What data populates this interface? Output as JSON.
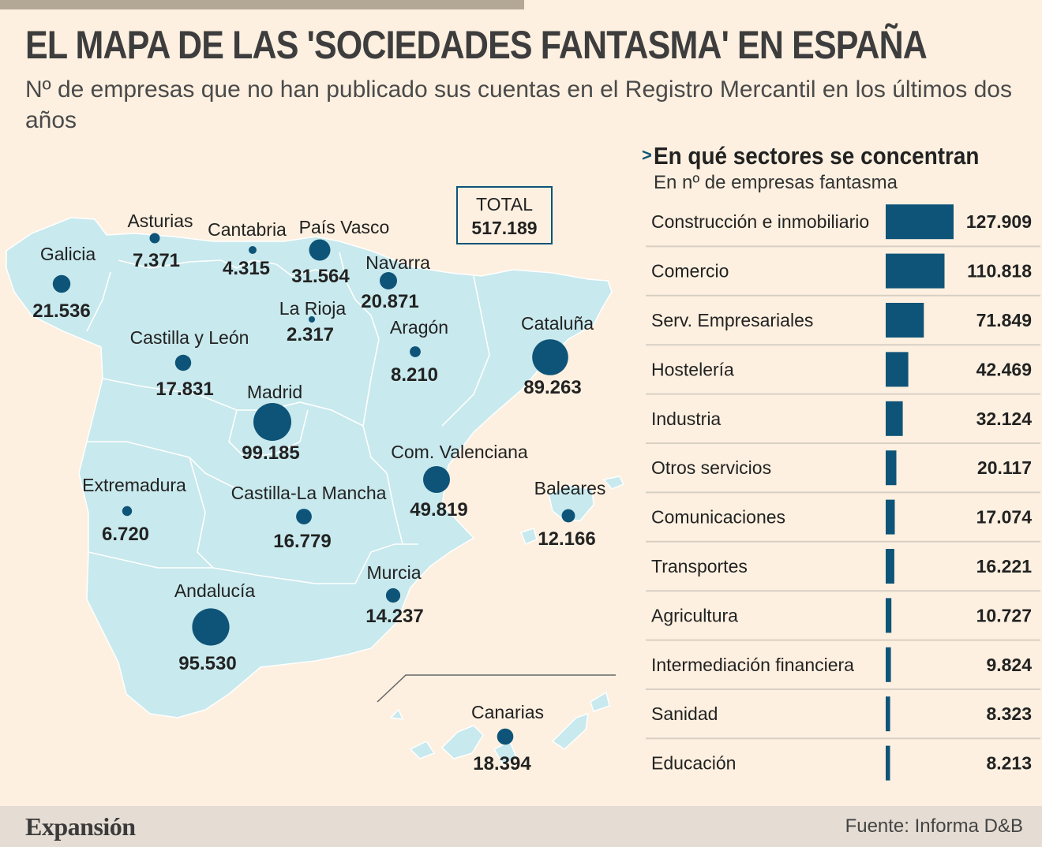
{
  "header": {
    "title": "EL MAPA DE LAS 'SOCIEDADES FANTASMA' EN ESPAÑA",
    "subtitle": "Nº de empresas que no han publicado sus cuentas en el Registro Mercantil en los últimos dos años"
  },
  "total": {
    "label": "TOTAL",
    "value": "517.189"
  },
  "colors": {
    "accent": "#0e5478",
    "map_fill": "#c8e9ed",
    "background": "#fdf0e0",
    "footer": "#e5ddd4"
  },
  "chart_data": [
    {
      "type": "bubble-map",
      "title": "EL MAPA DE LAS 'SOCIEDADES FANTASMA' EN ESPAÑA",
      "regions": [
        {
          "name": "Galicia",
          "value": 21536,
          "label": "21.536"
        },
        {
          "name": "Asturias",
          "value": 7371,
          "label": "7.371"
        },
        {
          "name": "Cantabria",
          "value": 4315,
          "label": "4.315"
        },
        {
          "name": "País Vasco",
          "value": 31564,
          "label": "31.564"
        },
        {
          "name": "Navarra",
          "value": 20871,
          "label": "20.871"
        },
        {
          "name": "La Rioja",
          "value": 2317,
          "label": "2.317"
        },
        {
          "name": "Aragón",
          "value": 8210,
          "label": "8.210"
        },
        {
          "name": "Cataluña",
          "value": 89263,
          "label": "89.263"
        },
        {
          "name": "Castilla y León",
          "value": 17831,
          "label": "17.831"
        },
        {
          "name": "Madrid",
          "value": 99185,
          "label": "99.185"
        },
        {
          "name": "Com. Valenciana",
          "value": 49819,
          "label": "49.819"
        },
        {
          "name": "Baleares",
          "value": 12166,
          "label": "12.166"
        },
        {
          "name": "Extremadura",
          "value": 6720,
          "label": "6.720"
        },
        {
          "name": "Castilla-La Mancha",
          "value": 16779,
          "label": "16.779"
        },
        {
          "name": "Murcia",
          "value": 14237,
          "label": "14.237"
        },
        {
          "name": "Andalucía",
          "value": 95530,
          "label": "95.530"
        },
        {
          "name": "Canarias",
          "value": 18394,
          "label": "18.394"
        }
      ]
    },
    {
      "type": "bar",
      "orientation": "horizontal",
      "title": "En qué sectores se concentran",
      "subtitle": "En nº de empresas fantasma",
      "categories": [
        "Construcción e inmobiliario",
        "Comercio",
        "Serv. Empresariales",
        "Hostelería",
        "Industria",
        "Otros servicios",
        "Comunicaciones",
        "Transportes",
        "Agricultura",
        "Intermediación financiera",
        "Sanidad",
        "Educación"
      ],
      "values": [
        127909,
        110818,
        71849,
        42469,
        32124,
        20117,
        17074,
        16221,
        10727,
        9824,
        8323,
        8213
      ],
      "value_labels": [
        "127.909",
        "110.818",
        "71.849",
        "42.469",
        "32.124",
        "20.117",
        "17.074",
        "16.221",
        "10.727",
        "9.824",
        "8.323",
        "8.213"
      ],
      "xlim": [
        0,
        127909
      ]
    }
  ],
  "footer": {
    "brand": "Expansión",
    "source": "Fuente:  Informa D&B"
  }
}
